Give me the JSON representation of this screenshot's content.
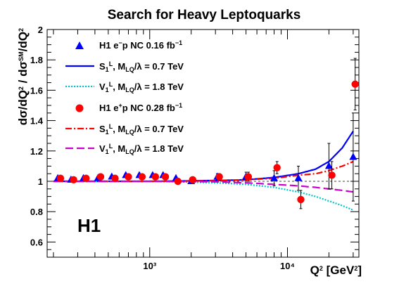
{
  "chart_data": {
    "type": "scatter",
    "title": "Search for Heavy Leptoquarks",
    "experiment_label": "H1",
    "xscale": "log",
    "xlim": [
      180,
      33000
    ],
    "ylim": [
      0.5,
      2.0
    ],
    "yticks": [
      0.6,
      0.8,
      1.0,
      1.2,
      1.4,
      1.6,
      1.8,
      2.0
    ],
    "ytick_labels": [
      "0.6",
      "0.8",
      "1",
      "1.2",
      "1.4",
      "1.6",
      "1.8",
      "2"
    ],
    "xticks": [
      1000,
      10000
    ],
    "xtick_labels": [
      "10³",
      "10⁴"
    ],
    "reference_line": 1.0,
    "xlabel": {
      "main": "Q",
      "sup": "2",
      "unit_open": " [GeV",
      "unit_sup": "2",
      "unit_close": "]"
    },
    "ylabel": "dσ/dQ² / dσˢᴹ/dQ²",
    "series": [
      {
        "name": "H1 e⁻p NC 0.16 fb⁻¹",
        "kind": "points",
        "marker": "triangle",
        "color": "#0000ff",
        "x": [
          215,
          268,
          330,
          420,
          530,
          670,
          840,
          1050,
          1250,
          1550,
          2000,
          3100,
          5000,
          8000,
          12000,
          20000,
          30000
        ],
        "y": [
          1.02,
          1.01,
          1.02,
          1.02,
          1.03,
          1.04,
          1.04,
          1.04,
          1.04,
          1.02,
          1.0,
          1.03,
          1.03,
          1.02,
          1.02,
          1.1,
          1.16
        ],
        "yerr": [
          0.01,
          0.01,
          0.01,
          0.01,
          0.01,
          0.01,
          0.01,
          0.01,
          0.01,
          0.01,
          0.015,
          0.02,
          0.03,
          0.05,
          0.08,
          0.15,
          0.29
        ]
      },
      {
        "name": "H1 e⁺p NC 0.28 fb⁻¹",
        "kind": "points",
        "marker": "circle",
        "color": "#ff0000",
        "x": [
          225,
          280,
          345,
          440,
          560,
          700,
          880,
          1100,
          1300,
          1600,
          2050,
          3200,
          5200,
          8400,
          12500,
          21000,
          31000
        ],
        "y": [
          1.02,
          1.01,
          1.02,
          1.03,
          1.02,
          1.03,
          1.03,
          1.03,
          1.03,
          1.0,
          1.01,
          1.03,
          1.03,
          1.09,
          0.88,
          1.04,
          1.64
        ],
        "yerr": [
          0.01,
          0.01,
          0.01,
          0.01,
          0.01,
          0.01,
          0.01,
          0.01,
          0.01,
          0.01,
          0.015,
          0.02,
          0.03,
          0.04,
          0.06,
          0.09,
          0.17
        ]
      },
      {
        "name": "S₁ᴸ, e⁻p curve",
        "kind": "curve",
        "color": "#0000ff",
        "dash": "",
        "x": [
          200,
          1000,
          3000,
          5000,
          8000,
          12000,
          16000,
          20000,
          25000,
          30000
        ],
        "y": [
          1.0,
          1.0,
          1.005,
          1.01,
          1.025,
          1.05,
          1.08,
          1.13,
          1.22,
          1.33
        ]
      },
      {
        "name": "V₁ᴸ, e⁻p curve",
        "kind": "curve",
        "color": "#00c8c8",
        "dash": "2,2",
        "x": [
          200,
          1000,
          2000,
          3000,
          5000,
          8000,
          12000,
          16000,
          20000,
          25000,
          30000
        ],
        "y": [
          1.0,
          1.0,
          0.995,
          0.99,
          0.98,
          0.96,
          0.93,
          0.9,
          0.87,
          0.84,
          0.81
        ]
      },
      {
        "name": "S₁ᴸ, e⁺p curve",
        "kind": "curve",
        "color": "#ff0000",
        "dash": "9,3,2,3",
        "x": [
          200,
          1000,
          3000,
          5000,
          8000,
          12000,
          16000,
          20000,
          25000,
          30000
        ],
        "y": [
          1.0,
          1.0,
          1.003,
          1.01,
          1.02,
          1.04,
          1.05,
          1.07,
          1.1,
          1.13
        ]
      },
      {
        "name": "V₁ᴸ, e⁺p curve",
        "kind": "curve",
        "color": "#cc00cc",
        "dash": "11,5",
        "x": [
          200,
          1000,
          3000,
          5000,
          8000,
          12000,
          16000,
          20000,
          25000,
          30000
        ],
        "y": [
          1.0,
          1.0,
          0.997,
          0.99,
          0.98,
          0.97,
          0.96,
          0.95,
          0.94,
          0.93
        ]
      }
    ],
    "legend": {
      "placement": "top-left",
      "entries": [
        {
          "id": "em-data",
          "symbol": "triangle",
          "color": "#0000ff",
          "parts": [
            {
              "t": "H1 e"
            },
            {
              "t": "−",
              "sup": true
            },
            {
              "t": "p NC 0.16 fb"
            },
            {
              "t": "−1",
              "sup": true
            }
          ]
        },
        {
          "id": "em-s1",
          "symbol": "line",
          "color": "#0000ff",
          "dash": "",
          "parts": [
            {
              "t": "S"
            },
            {
              "t": "1",
              "sub": true
            },
            {
              "t": "L",
              "sup": true
            },
            {
              "t": ",   M"
            },
            {
              "t": "LQ",
              "sub": true
            },
            {
              "t": "/λ = 0.7 TeV"
            }
          ]
        },
        {
          "id": "em-v1",
          "symbol": "line",
          "color": "#00c8c8",
          "dash": "2,2",
          "parts": [
            {
              "t": "V"
            },
            {
              "t": "1",
              "sub": true
            },
            {
              "t": "L",
              "sup": true
            },
            {
              "t": ",   M"
            },
            {
              "t": "LQ",
              "sub": true
            },
            {
              "t": "/λ = 1.8 TeV"
            }
          ]
        },
        {
          "id": "ep-data",
          "symbol": "circle",
          "color": "#ff0000",
          "parts": [
            {
              "t": "H1 e"
            },
            {
              "t": "+",
              "sup": true
            },
            {
              "t": "p NC 0.28 fb"
            },
            {
              "t": "−1",
              "sup": true
            }
          ]
        },
        {
          "id": "ep-s1",
          "symbol": "line",
          "color": "#ff0000",
          "dash": "9,3,2,3",
          "parts": [
            {
              "t": "S"
            },
            {
              "t": "1",
              "sub": true
            },
            {
              "t": "L",
              "sup": true
            },
            {
              "t": ",   M"
            },
            {
              "t": "LQ",
              "sub": true
            },
            {
              "t": "/λ = 0.7 TeV"
            }
          ]
        },
        {
          "id": "ep-v1",
          "symbol": "line",
          "color": "#cc00cc",
          "dash": "11,5",
          "parts": [
            {
              "t": "V"
            },
            {
              "t": "1",
              "sub": true
            },
            {
              "t": "L",
              "sup": true
            },
            {
              "t": ",   M"
            },
            {
              "t": "LQ",
              "sub": true
            },
            {
              "t": "/λ = 1.8 TeV"
            }
          ]
        }
      ]
    }
  }
}
